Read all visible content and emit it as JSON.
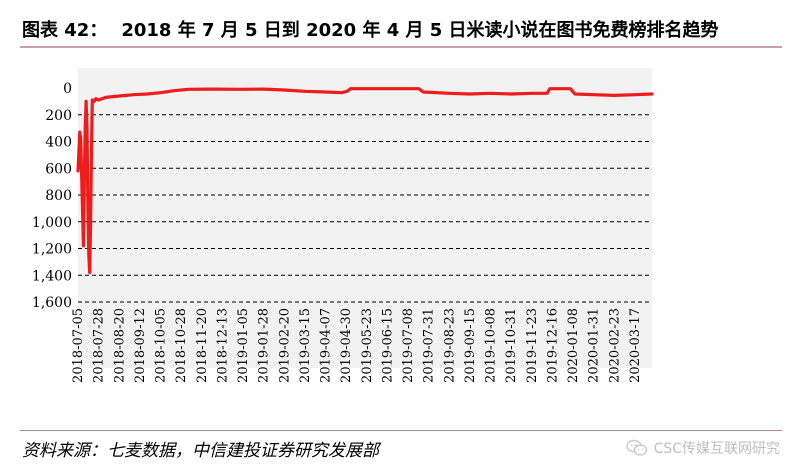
{
  "header": {
    "label": "图表 42：",
    "title": "2018 年 7 月 5 日到 2020 年 4 月 5 日米读小说在图书免费榜排名趋势"
  },
  "footer": {
    "source": "资料来源：七麦数据，中信建投证券研究发展部",
    "watermark": "CSC传媒互联网研究"
  },
  "colors": {
    "line": "#ee1c1c",
    "grid": "#000000",
    "plot_bg": "#f2f2f2"
  },
  "chart_data": {
    "type": "line",
    "title": "",
    "xlabel": "",
    "ylabel": "",
    "y_inverted": true,
    "ylim": [
      0,
      1600
    ],
    "yticks": [
      0,
      200,
      400,
      600,
      800,
      1000,
      1200,
      1400,
      1600
    ],
    "ytick_labels": [
      "0",
      "200",
      "400",
      "600",
      "800",
      "1,000",
      "1,200",
      "1,400",
      "1,600"
    ],
    "grid": "horizontal-dashed",
    "xlim": [
      "2018-07-05",
      "2020-04-05"
    ],
    "xtick_labels": [
      "2018-07-05",
      "2018-07-28",
      "2018-08-20",
      "2018-09-12",
      "2018-10-05",
      "2018-10-28",
      "2018-11-20",
      "2018-12-13",
      "2019-01-05",
      "2019-01-28",
      "2019-02-20",
      "2019-03-15",
      "2019-04-07",
      "2019-04-30",
      "2019-05-23",
      "2019-06-15",
      "2019-07-08",
      "2019-07-31",
      "2019-08-23",
      "2019-09-15",
      "2019-10-08",
      "2019-10-31",
      "2019-11-23",
      "2019-12-16",
      "2020-01-08",
      "2020-01-31",
      "2020-02-23",
      "2020-03-17"
    ],
    "series": [
      {
        "points": [
          [
            "2018-07-05",
            620
          ],
          [
            "2018-07-06",
            480
          ],
          [
            "2018-07-07",
            330
          ],
          [
            "2018-07-08",
            380
          ],
          [
            "2018-07-09",
            640
          ],
          [
            "2018-07-10",
            900
          ],
          [
            "2018-07-11",
            1180
          ],
          [
            "2018-07-12",
            700
          ],
          [
            "2018-07-13",
            300
          ],
          [
            "2018-07-14",
            100
          ],
          [
            "2018-07-15",
            300
          ],
          [
            "2018-07-16",
            900
          ],
          [
            "2018-07-17",
            1250
          ],
          [
            "2018-07-18",
            1380
          ],
          [
            "2018-07-19",
            1000
          ],
          [
            "2018-07-20",
            450
          ],
          [
            "2018-07-21",
            90
          ],
          [
            "2018-07-23",
            100
          ],
          [
            "2018-07-25",
            80
          ],
          [
            "2018-07-28",
            90
          ],
          [
            "2018-08-05",
            70
          ],
          [
            "2018-08-20",
            60
          ],
          [
            "2018-09-05",
            50
          ],
          [
            "2018-09-20",
            45
          ],
          [
            "2018-10-05",
            35
          ],
          [
            "2018-10-20",
            20
          ],
          [
            "2018-11-05",
            10
          ],
          [
            "2018-12-01",
            8
          ],
          [
            "2019-01-01",
            10
          ],
          [
            "2019-01-28",
            8
          ],
          [
            "2019-02-20",
            15
          ],
          [
            "2019-03-15",
            25
          ],
          [
            "2019-04-07",
            30
          ],
          [
            "2019-04-25",
            35
          ],
          [
            "2019-05-01",
            25
          ],
          [
            "2019-05-05",
            5
          ],
          [
            "2019-06-15",
            5
          ],
          [
            "2019-07-20",
            5
          ],
          [
            "2019-07-25",
            30
          ],
          [
            "2019-08-23",
            40
          ],
          [
            "2019-09-15",
            45
          ],
          [
            "2019-10-08",
            40
          ],
          [
            "2019-10-31",
            45
          ],
          [
            "2019-11-23",
            40
          ],
          [
            "2019-12-10",
            40
          ],
          [
            "2019-12-13",
            5
          ],
          [
            "2020-01-05",
            5
          ],
          [
            "2020-01-10",
            45
          ],
          [
            "2020-01-31",
            50
          ],
          [
            "2020-02-23",
            55
          ],
          [
            "2020-03-17",
            50
          ],
          [
            "2020-04-05",
            45
          ]
        ]
      }
    ]
  }
}
